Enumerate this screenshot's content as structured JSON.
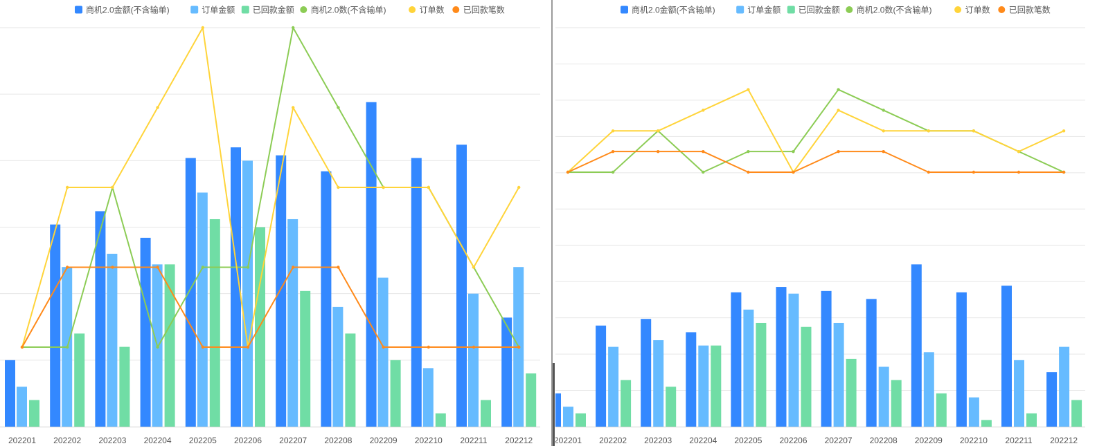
{
  "legend": {
    "items": [
      {
        "label": "商机2.0金额(不含输单)",
        "color": "#3388ff",
        "marker": "square"
      },
      {
        "label": "订单金额",
        "color": "#66bbff",
        "marker": "square"
      },
      {
        "label": "已回款金额",
        "color": "#70dda5",
        "marker": "square"
      },
      {
        "label": "商机2.0数(不含输单)",
        "color": "#8ccc55",
        "marker": "dot"
      },
      {
        "label": "订单数",
        "color": "#ffd43a",
        "marker": "dot"
      },
      {
        "label": "已回款笔数",
        "color": "#ff8a1a",
        "marker": "dot"
      }
    ]
  },
  "chart_data": [
    {
      "type": "bar",
      "categories": [
        "202201",
        "202202",
        "202203",
        "202204",
        "202205",
        "202206",
        "202207",
        "202208",
        "202209",
        "202210",
        "202211",
        "202212"
      ],
      "series": [
        {
          "name": "商机2.0金额(不含输单)",
          "kind": "bar",
          "color": "#3388ff",
          "values": [
            2.5,
            7.6,
            8.1,
            7.1,
            10.1,
            10.5,
            10.2,
            9.6,
            12.2,
            10.1,
            10.6,
            4.1
          ]
        },
        {
          "name": "订单金额",
          "kind": "bar",
          "color": "#66bbff",
          "values": [
            1.5,
            6.0,
            6.5,
            6.1,
            8.8,
            10.0,
            7.8,
            4.5,
            5.6,
            2.2,
            5.0,
            6.0
          ]
        },
        {
          "name": "已回款金额",
          "kind": "bar",
          "color": "#70dda5",
          "values": [
            1.0,
            3.5,
            3.0,
            6.1,
            7.8,
            7.5,
            5.1,
            3.5,
            2.5,
            0.5,
            1.0,
            2.0
          ]
        },
        {
          "name": "商机2.0数(不含输单)",
          "kind": "line",
          "color": "#8ccc55",
          "values": [
            1,
            1,
            3,
            1,
            2,
            2,
            5,
            4,
            3,
            3,
            2,
            1
          ]
        },
        {
          "name": "订单数",
          "kind": "line",
          "color": "#ffd43a",
          "values": [
            1,
            3,
            3,
            4,
            5,
            1,
            4,
            3,
            3,
            3,
            2,
            3
          ]
        },
        {
          "name": "已回款笔数",
          "kind": "line",
          "color": "#ff8a1a",
          "values": [
            1,
            2,
            2,
            2,
            1,
            1,
            2,
            2,
            1,
            1,
            1,
            1
          ]
        }
      ],
      "bar_axis_max": 15,
      "line_axis_max": 5,
      "grid": true
    },
    {
      "type": "bar",
      "categories": [
        "202201",
        "202202",
        "202203",
        "202204",
        "202205",
        "202206",
        "202207",
        "202208",
        "202209",
        "202210",
        "202211",
        "202212"
      ],
      "series": [
        {
          "name": "商机2.0金额(不含输单)",
          "kind": "bar",
          "color": "#3388ff",
          "values": [
            2.5,
            7.6,
            8.1,
            7.1,
            10.1,
            10.5,
            10.2,
            9.6,
            12.2,
            10.1,
            10.6,
            4.1
          ]
        },
        {
          "name": "订单金额",
          "kind": "bar",
          "color": "#66bbff",
          "values": [
            1.5,
            6.0,
            6.5,
            6.1,
            8.8,
            10.0,
            7.8,
            4.5,
            5.6,
            2.2,
            5.0,
            6.0
          ]
        },
        {
          "name": "已回款金额",
          "kind": "bar",
          "color": "#70dda5",
          "values": [
            1.0,
            3.5,
            3.0,
            6.1,
            7.8,
            7.5,
            5.1,
            3.5,
            2.5,
            0.5,
            1.0,
            2.0
          ]
        },
        {
          "name": "商机2.0数(不含输单)",
          "kind": "line",
          "color": "#8ccc55",
          "values": [
            1,
            1,
            3,
            1,
            2,
            2,
            5,
            4,
            3,
            3,
            2,
            1
          ]
        },
        {
          "name": "订单数",
          "kind": "line",
          "color": "#ffd43a",
          "values": [
            1,
            3,
            3,
            4,
            5,
            1,
            4,
            3,
            3,
            3,
            2,
            3
          ]
        },
        {
          "name": "已回款笔数",
          "kind": "line",
          "color": "#ff8a1a",
          "values": [
            1,
            2,
            2,
            2,
            1,
            1,
            2,
            2,
            1,
            1,
            1,
            1
          ]
        }
      ],
      "bar_axis_max": 30,
      "line_axis_max": 8,
      "grid": true
    }
  ]
}
